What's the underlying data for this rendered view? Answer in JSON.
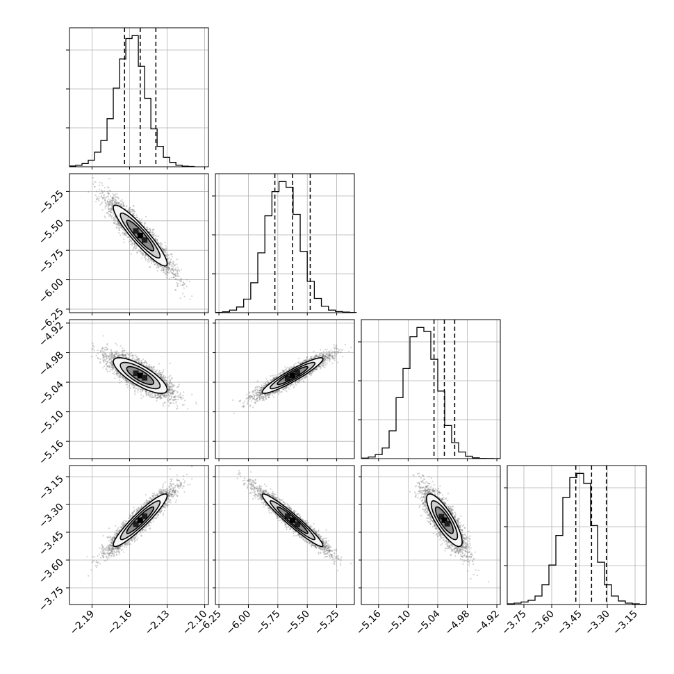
{
  "chart_data": {
    "type": "corner",
    "variables": [
      {
        "range": [
          -2.208,
          -2.097
        ],
        "ticks": [
          "−2.19",
          "−2.16",
          "−2.13",
          "−2.10"
        ],
        "tick_values": [
          -2.19,
          -2.16,
          -2.13,
          -2.1
        ],
        "quantiles": [
          -2.164,
          -2.1515,
          -2.139
        ],
        "hist": {
          "edges_start": -2.208,
          "bin_width": 0.005,
          "counts": [
            5,
            10,
            22,
            45,
            100,
            180,
            330,
            540,
            740,
            880,
            900,
            690,
            470,
            260,
            140,
            65,
            30,
            10,
            4,
            2
          ]
        }
      },
      {
        "range": [
          -6.28,
          -5.1
        ],
        "ticks": [
          "−6.25",
          "−6.00",
          "−5.75",
          "−5.50",
          "−5.25"
        ],
        "tick_values": [
          -6.25,
          -6.0,
          -5.75,
          -5.5,
          -5.25
        ],
        "quantiles": [
          -5.775,
          -5.625,
          -5.475
        ],
        "hist": {
          "edges_start": -6.28,
          "bin_width": 0.06,
          "counts": [
            2,
            6,
            18,
            40,
            95,
            210,
            420,
            680,
            850,
            920,
            880,
            690,
            430,
            220,
            100,
            45,
            18,
            8,
            4,
            2
          ]
        }
      },
      {
        "range": [
          -5.195,
          -4.913
        ],
        "ticks": [
          "−5.16",
          "−5.10",
          "−5.04",
          "−4.98",
          "−4.92"
        ],
        "tick_values": [
          -5.16,
          -5.1,
          -5.04,
          -4.98,
          -4.92
        ],
        "quantiles": [
          -5.0475,
          -5.0265,
          -5.0055
        ],
        "hist": {
          "edges_start": -5.195,
          "bin_width": 0.0141,
          "counts": [
            4,
            12,
            30,
            80,
            210,
            460,
            680,
            920,
            990,
            960,
            750,
            510,
            250,
            120,
            50,
            18,
            6,
            2,
            1,
            0
          ]
        }
      },
      {
        "range": [
          -3.84,
          -3.09
        ],
        "ticks": [
          "−3.75",
          "−3.60",
          "−3.45",
          "−3.30",
          "−3.15"
        ],
        "tick_values": [
          -3.75,
          -3.6,
          -3.45,
          -3.3,
          -3.15
        ],
        "quantiles": [
          -3.47,
          -3.385,
          -3.305
        ],
        "hist": {
          "edges_start": -3.84,
          "bin_width": 0.0375,
          "counts": [
            5,
            10,
            18,
            30,
            60,
            140,
            280,
            490,
            760,
            900,
            930,
            860,
            560,
            300,
            140,
            60,
            25,
            10,
            5,
            2
          ]
        }
      }
    ],
    "correlations": [
      {
        "row": 1,
        "col": 0,
        "rho": -0.92
      },
      {
        "row": 2,
        "col": 0,
        "rho": -0.78
      },
      {
        "row": 2,
        "col": 1,
        "rho": 0.93
      },
      {
        "row": 3,
        "col": 0,
        "rho": 0.93
      },
      {
        "row": 3,
        "col": 1,
        "rho": -0.96
      },
      {
        "row": 3,
        "col": 2,
        "rho": -0.82
      }
    ],
    "grid": true,
    "quantile_line_style": "dashed"
  }
}
